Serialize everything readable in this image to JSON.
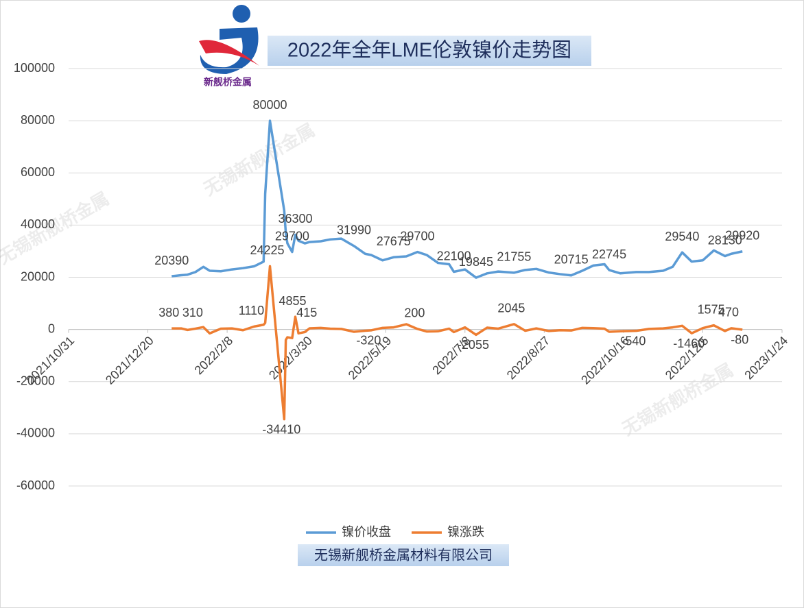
{
  "logo_text": "新舰桥金属",
  "watermark": "无锡新舰桥金属",
  "footer": "无锡新舰桥金属材料有限公司",
  "chart_data": {
    "type": "line",
    "title": "2022年全年LME伦敦镍价走势图",
    "x": [
      "2022/1/4",
      "2022/1/10",
      "2022/1/14",
      "2022/1/19",
      "2022/1/24",
      "2022/1/28",
      "2022/2/4",
      "2022/2/11",
      "2022/2/18",
      "2022/2/25",
      "2022/3/3",
      "2022/3/4",
      "2022/3/7",
      "2022/3/16",
      "2022/3/17",
      "2022/3/18",
      "2022/3/21",
      "2022/3/23",
      "2022/3/25",
      "2022/3/29",
      "2022/4/1",
      "2022/4/8",
      "2022/4/14",
      "2022/4/21",
      "2022/4/29",
      "2022/5/6",
      "2022/5/10",
      "2022/5/17",
      "2022/5/24",
      "2022/6/1",
      "2022/6/8",
      "2022/6/14",
      "2022/6/21",
      "2022/6/28",
      "2022/7/1",
      "2022/7/8",
      "2022/7/15",
      "2022/7/22",
      "2022/7/29",
      "2022/8/8",
      "2022/8/15",
      "2022/8/22",
      "2022/8/30",
      "2022/9/6",
      "2022/9/13",
      "2022/9/20",
      "2022/9/27",
      "2022/10/4",
      "2022/10/7",
      "2022/10/14",
      "2022/10/24",
      "2022/11/1",
      "2022/11/10",
      "2022/11/16",
      "2022/11/22",
      "2022/11/28",
      "2022/12/5",
      "2022/12/12",
      "2022/12/19",
      "2022/12/23",
      "2022/12/30"
    ],
    "series": [
      {
        "name": "镍价收盘",
        "color": "#5b9bd5",
        "values": [
          20390,
          20800,
          21000,
          22000,
          24000,
          22500,
          22300,
          23000,
          23500,
          24200,
          26000,
          52000,
          80000,
          45590,
          37000,
          33000,
          29700,
          36300,
          34000,
          33000,
          33500,
          33800,
          34500,
          34800,
          31990,
          29000,
          28500,
          26500,
          27675,
          28000,
          29700,
          28500,
          25500,
          25000,
          22100,
          23000,
          19845,
          21500,
          22200,
          21755,
          22800,
          23200,
          21800,
          21200,
          20715,
          22500,
          24500,
          25000,
          22745,
          21500,
          22000,
          22000,
          22500,
          24000,
          29540,
          26000,
          26500,
          30300,
          28130,
          29000,
          29920
        ],
        "value_labels": [
          "20390",
          null,
          null,
          null,
          null,
          null,
          null,
          null,
          null,
          null,
          null,
          null,
          "80000",
          null,
          null,
          null,
          "29700",
          "36300",
          null,
          null,
          null,
          null,
          null,
          null,
          "31990",
          null,
          null,
          null,
          "27675",
          null,
          "29700",
          null,
          null,
          null,
          "22100",
          null,
          "19845",
          null,
          null,
          "21755",
          null,
          null,
          null,
          null,
          "20715",
          null,
          null,
          null,
          "22745",
          null,
          null,
          null,
          null,
          null,
          "29540",
          null,
          null,
          null,
          "28130",
          null,
          "29920"
        ]
      },
      {
        "name": "镍涨跌",
        "color": "#ed7d31",
        "values": [
          380,
          400,
          -200,
          310,
          900,
          -1500,
          300,
          400,
          -300,
          1110,
          1800,
          2500,
          24225,
          -34410,
          -4000,
          -3000,
          -3300,
          4855,
          -1500,
          -1000,
          415,
          600,
          300,
          200,
          -900,
          -500,
          -320,
          600,
          800,
          2000,
          200,
          -800,
          -700,
          300,
          -1000,
          800,
          -2055,
          700,
          300,
          2045,
          -500,
          400,
          -600,
          -300,
          -400,
          600,
          500,
          300,
          -900,
          -700,
          -540,
          200,
          400,
          800,
          1400,
          -1460,
          500,
          1575,
          -600,
          470,
          -80
        ],
        "value_labels": [
          "380",
          null,
          null,
          "310",
          null,
          null,
          null,
          null,
          null,
          "1110",
          null,
          null,
          "24225",
          "-34410",
          null,
          null,
          null,
          "4855",
          null,
          null,
          "415",
          null,
          null,
          null,
          null,
          null,
          "-320",
          null,
          null,
          null,
          "200",
          null,
          null,
          null,
          null,
          null,
          "-2055",
          null,
          null,
          "2045",
          null,
          null,
          null,
          null,
          null,
          null,
          null,
          null,
          null,
          null,
          "-540",
          null,
          null,
          null,
          null,
          "-1460",
          null,
          "1575",
          null,
          "470",
          "-80"
        ]
      }
    ],
    "xlim": [
      "2021/10/31",
      "2023/1/24"
    ],
    "xticks": [
      "2021/10/31",
      "2021/12/20",
      "2022/2/8",
      "2022/3/30",
      "2022/5/19",
      "2022/7/8",
      "2022/8/27",
      "2022/10/16",
      "2022/12/5",
      "2023/1/24"
    ],
    "ylim": [
      -60000,
      100000
    ],
    "yticks": [
      -60000,
      -40000,
      -20000,
      0,
      20000,
      40000,
      60000,
      80000,
      100000
    ],
    "grid": true
  }
}
